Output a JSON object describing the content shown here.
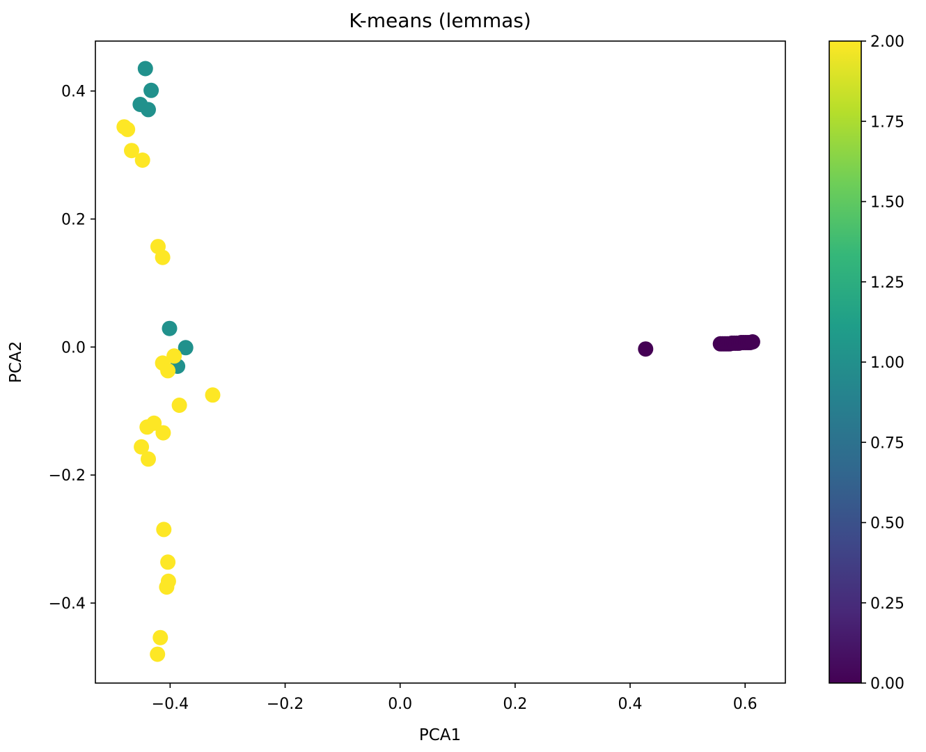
{
  "chart_data": {
    "type": "scatter",
    "title": "K-means (lemmas)",
    "xlabel": "PCA1",
    "ylabel": "PCA2",
    "xlim": [
      -0.53,
      0.67
    ],
    "ylim": [
      -0.525,
      0.478
    ],
    "xticks": [
      -0.4,
      -0.2,
      0.0,
      0.2,
      0.4,
      0.6
    ],
    "xtick_labels": [
      "−0.4",
      "−0.2",
      "0.0",
      "0.2",
      "0.4",
      "0.6"
    ],
    "yticks": [
      -0.4,
      -0.2,
      0.0,
      0.2,
      0.4
    ],
    "ytick_labels": [
      "−0.4",
      "−0.2",
      "0.0",
      "0.2",
      "0.4"
    ],
    "grid": false,
    "colormap": "viridis",
    "colorbar": {
      "min": 0.0,
      "max": 2.0,
      "ticks": [
        0.0,
        0.25,
        0.5,
        0.75,
        1.0,
        1.25,
        1.5,
        1.75,
        2.0
      ],
      "tick_labels": [
        "0.00",
        "0.25",
        "0.50",
        "0.75",
        "1.00",
        "1.25",
        "1.50",
        "1.75",
        "2.00"
      ],
      "stops": [
        "#440154",
        "#482878",
        "#3e4989",
        "#31688e",
        "#26828e",
        "#1f9e89",
        "#35b779",
        "#6ece58",
        "#b5de2b",
        "#fde725"
      ]
    },
    "cluster_colors": {
      "0": "#440154",
      "1": "#21918c",
      "2": "#fde725"
    },
    "points": [
      {
        "x": -0.443,
        "y": 0.435,
        "cluster": 1
      },
      {
        "x": -0.433,
        "y": 0.401,
        "cluster": 1
      },
      {
        "x": -0.452,
        "y": 0.379,
        "cluster": 1
      },
      {
        "x": -0.438,
        "y": 0.371,
        "cluster": 1
      },
      {
        "x": -0.401,
        "y": 0.029,
        "cluster": 1
      },
      {
        "x": -0.373,
        "y": -0.001,
        "cluster": 1
      },
      {
        "x": -0.387,
        "y": -0.03,
        "cluster": 1
      },
      {
        "x": -0.48,
        "y": 0.344,
        "cluster": 2
      },
      {
        "x": -0.474,
        "y": 0.34,
        "cluster": 2
      },
      {
        "x": -0.467,
        "y": 0.307,
        "cluster": 2
      },
      {
        "x": -0.448,
        "y": 0.292,
        "cluster": 2
      },
      {
        "x": -0.421,
        "y": 0.157,
        "cluster": 2
      },
      {
        "x": -0.413,
        "y": 0.14,
        "cluster": 2
      },
      {
        "x": -0.393,
        "y": -0.014,
        "cluster": 2
      },
      {
        "x": -0.413,
        "y": -0.025,
        "cluster": 2
      },
      {
        "x": -0.404,
        "y": -0.037,
        "cluster": 2
      },
      {
        "x": -0.384,
        "y": -0.091,
        "cluster": 2
      },
      {
        "x": -0.326,
        "y": -0.075,
        "cluster": 2
      },
      {
        "x": -0.44,
        "y": -0.125,
        "cluster": 2
      },
      {
        "x": -0.428,
        "y": -0.119,
        "cluster": 2
      },
      {
        "x": -0.412,
        "y": -0.134,
        "cluster": 2
      },
      {
        "x": -0.45,
        "y": -0.156,
        "cluster": 2
      },
      {
        "x": -0.438,
        "y": -0.175,
        "cluster": 2
      },
      {
        "x": -0.411,
        "y": -0.285,
        "cluster": 2
      },
      {
        "x": -0.404,
        "y": -0.336,
        "cluster": 2
      },
      {
        "x": -0.403,
        "y": -0.366,
        "cluster": 2
      },
      {
        "x": -0.406,
        "y": -0.375,
        "cluster": 2
      },
      {
        "x": -0.417,
        "y": -0.454,
        "cluster": 2
      },
      {
        "x": -0.422,
        "y": -0.48,
        "cluster": 2
      },
      {
        "x": 0.427,
        "y": -0.003,
        "cluster": 0
      },
      {
        "x": 0.557,
        "y": 0.005,
        "cluster": 0
      },
      {
        "x": 0.561,
        "y": 0.005,
        "cluster": 0
      },
      {
        "x": 0.565,
        "y": 0.005,
        "cluster": 0
      },
      {
        "x": 0.569,
        "y": 0.005,
        "cluster": 0
      },
      {
        "x": 0.573,
        "y": 0.005,
        "cluster": 0
      },
      {
        "x": 0.577,
        "y": 0.006,
        "cluster": 0
      },
      {
        "x": 0.581,
        "y": 0.006,
        "cluster": 0
      },
      {
        "x": 0.585,
        "y": 0.006,
        "cluster": 0
      },
      {
        "x": 0.589,
        "y": 0.006,
        "cluster": 0
      },
      {
        "x": 0.593,
        "y": 0.007,
        "cluster": 0
      },
      {
        "x": 0.597,
        "y": 0.007,
        "cluster": 0
      },
      {
        "x": 0.601,
        "y": 0.007,
        "cluster": 0
      },
      {
        "x": 0.605,
        "y": 0.007,
        "cluster": 0
      },
      {
        "x": 0.609,
        "y": 0.007,
        "cluster": 0
      },
      {
        "x": 0.613,
        "y": 0.008,
        "cluster": 0
      }
    ]
  }
}
